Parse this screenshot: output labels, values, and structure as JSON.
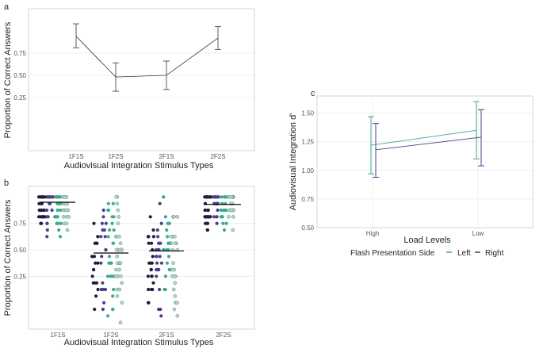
{
  "chart_data": [
    {
      "panel": "a",
      "type": "line",
      "title": "",
      "xlabel": "Audiovisual Integration Stimulus Types",
      "ylabel": "Proportion of Correct Answers",
      "categories": [
        "1F1S",
        "1F2S",
        "2F1S",
        "2F2S"
      ],
      "values": [
        0.94,
        0.48,
        0.5,
        0.92
      ],
      "error_low": [
        0.81,
        0.32,
        0.34,
        0.79
      ],
      "error_high": [
        1.08,
        0.64,
        0.66,
        1.05
      ],
      "yticks": [
        "0.25",
        "0.50",
        "0.75"
      ],
      "ylim": [
        -0.35,
        1.25
      ],
      "grid": true
    },
    {
      "panel": "b",
      "type": "scatter",
      "title": "",
      "xlabel": "Audiovisual Integration Stimulus Types",
      "ylabel": "Proportion of Correct Answers",
      "categories": [
        "1F1S",
        "1F2S",
        "2F1S",
        "2F2S"
      ],
      "means": [
        0.95,
        0.47,
        0.49,
        0.93
      ],
      "yticks": [
        "0.25",
        "0.50",
        "0.75"
      ],
      "ylim": [
        -0.25,
        1.1
      ],
      "grid": true
    },
    {
      "panel": "c",
      "type": "line",
      "title": "",
      "xlabel": "Load Levels",
      "ylabel": "Audiovisual Integration d'",
      "categories": [
        "High",
        "Low"
      ],
      "series": [
        {
          "name": "Left",
          "values": [
            1.22,
            1.35
          ],
          "error_low": [
            0.97,
            1.1
          ],
          "error_high": [
            1.47,
            1.6
          ],
          "color": "#3aaa8c"
        },
        {
          "name": "Right",
          "values": [
            1.18,
            1.29
          ],
          "error_low": [
            0.94,
            1.04
          ],
          "error_high": [
            1.41,
            1.53
          ],
          "color": "#4b3d8f"
        }
      ],
      "yticks": [
        "0.50",
        "0.75",
        "1.00",
        "1.25",
        "1.50"
      ],
      "ylim": [
        0.5,
        1.65
      ],
      "legend_title": "Flash Presentation Side",
      "legend_position": "bottom",
      "grid": true
    }
  ],
  "colors": {
    "dark": "#1f1d3a",
    "purple": "#4b3d8f",
    "teal": "#3aaa8c",
    "light_teal": "#a9d8c4"
  }
}
